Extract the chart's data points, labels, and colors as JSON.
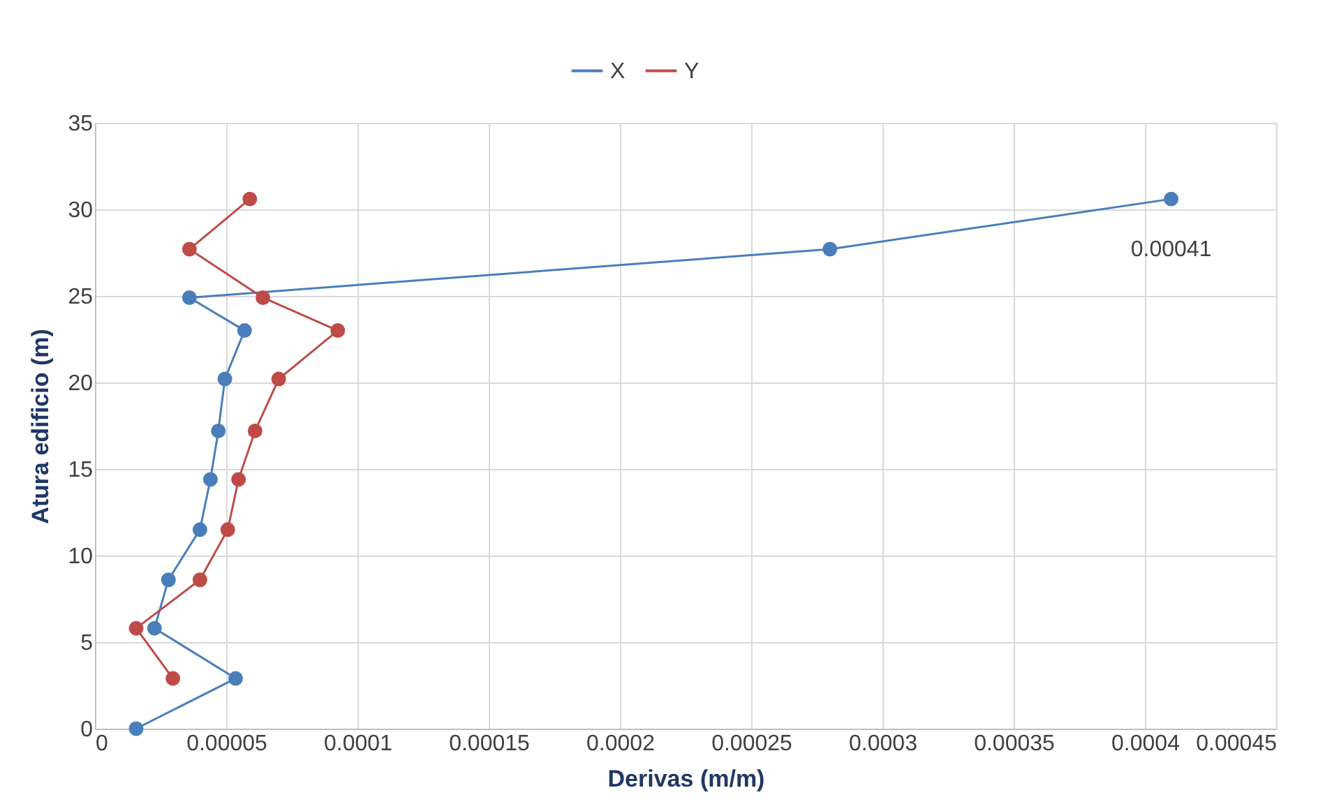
{
  "chart_data": {
    "type": "line",
    "xlabel": "Derivas (m/m)",
    "ylabel": "Atura edificio (m)",
    "series": [
      {
        "name": "X",
        "color": "#4a7ebb",
        "x": [
          1.57e-05,
          5.36e-05,
          2.27e-05,
          2.8e-05,
          4e-05,
          4.4e-05,
          4.7e-05,
          4.95e-05,
          5.7e-05,
          3.6e-05,
          0.00028,
          0.00041
        ],
        "values": [
          0,
          2.9,
          5.8,
          8.6,
          11.5,
          14.4,
          17.2,
          20.2,
          23,
          24.9,
          27.7,
          30.6
        ]
      },
      {
        "name": "Y",
        "color": "#be4b48",
        "x": [
          2.97e-05,
          1.57e-05,
          4e-05,
          5.06e-05,
          5.47e-05,
          6.1e-05,
          7e-05,
          9.25e-05,
          6.4e-05,
          3.6e-05,
          5.9e-05
        ],
        "values": [
          2.9,
          5.8,
          8.6,
          11.5,
          14.4,
          17.2,
          20.2,
          23,
          24.9,
          27.7,
          30.6
        ]
      }
    ],
    "xlim": [
      0,
      0.00045
    ],
    "xticks": [
      0,
      {
        "value": 5e-05,
        "label": "0.00005"
      },
      0.0001,
      0.00015,
      0.0002,
      0.00025,
      0.0003,
      0.00035,
      0.0004,
      0.00045
    ],
    "ylim": [
      0,
      35
    ],
    "yticks": [
      0,
      5,
      10,
      15,
      20,
      25,
      30,
      35
    ],
    "annotations": [
      {
        "text": "0.00041",
        "x": 0.00041,
        "y": 30.6
      }
    ],
    "grid": true,
    "legend": "top",
    "marker": "circle",
    "line_style": "solid"
  }
}
